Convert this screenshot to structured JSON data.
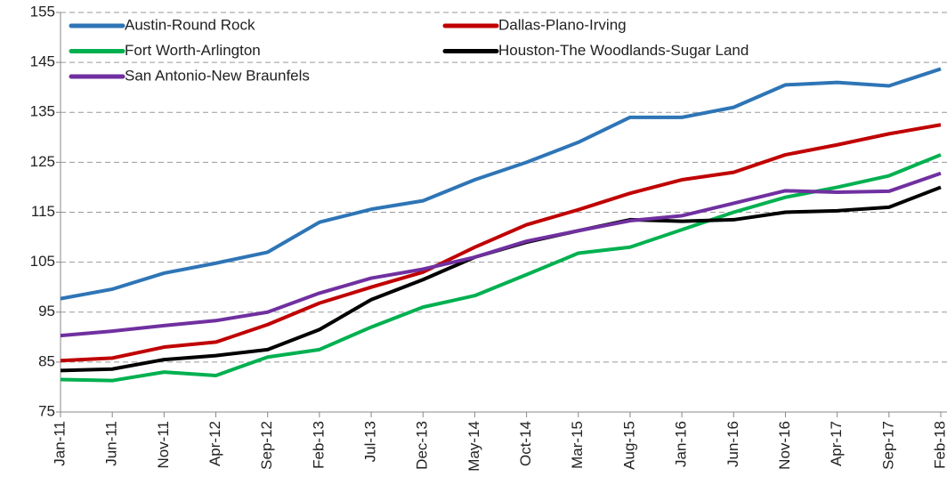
{
  "chart_data": {
    "type": "line",
    "categories": [
      "Jan-11",
      "Jun-11",
      "Nov-11",
      "Apr-12",
      "Sep-12",
      "Feb-13",
      "Jul-13",
      "Dec-13",
      "May-14",
      "Oct-14",
      "Mar-15",
      "Aug-15",
      "Jan-16",
      "Jun-16",
      "Nov-16",
      "Apr-17",
      "Sep-17",
      "Feb-18"
    ],
    "series": [
      {
        "name": "Austin-Round Rock",
        "color": "#2e75b6",
        "values": [
          97.7,
          99.6,
          102.8,
          104.8,
          107,
          113,
          115.6,
          117.3,
          121.5,
          125,
          129,
          134,
          134,
          136,
          140.5,
          141,
          140.3,
          143.7
        ]
      },
      {
        "name": "Dallas-Plano-Irving",
        "color": "#c00000",
        "values": [
          85.3,
          85.8,
          88,
          89,
          92.5,
          96.8,
          100,
          103,
          108,
          112.5,
          115.5,
          118.8,
          121.5,
          123,
          126.5,
          128.5,
          130.7,
          132.5
        ]
      },
      {
        "name": "Fort Worth-Arlington",
        "color": "#00b050",
        "values": [
          81.5,
          81.3,
          83,
          82.3,
          86,
          87.5,
          92,
          96,
          98.3,
          102.5,
          106.8,
          108,
          111.5,
          115,
          118,
          120,
          122.3,
          126.5
        ]
      },
      {
        "name": "Houston-The Woodlands-Sugar Land",
        "color": "#000000",
        "values": [
          83.3,
          83.6,
          85.5,
          86.3,
          87.5,
          91.5,
          97.5,
          101.5,
          106,
          109,
          111.3,
          113.5,
          113.2,
          113.5,
          115,
          115.3,
          116,
          120
        ]
      },
      {
        "name": "San Antonio-New Braunfels",
        "color": "#7030a0",
        "values": [
          90.3,
          91.2,
          92.3,
          93.3,
          95,
          98.8,
          101.8,
          103.6,
          106,
          109.2,
          111.3,
          113.3,
          114.3,
          116.8,
          119.3,
          119,
          119.2,
          122.8
        ]
      }
    ],
    "ylim": [
      75,
      155
    ],
    "yticks": [
      75,
      85,
      95,
      105,
      115,
      125,
      135,
      145,
      155
    ],
    "grid": true,
    "legend": "upper left"
  }
}
